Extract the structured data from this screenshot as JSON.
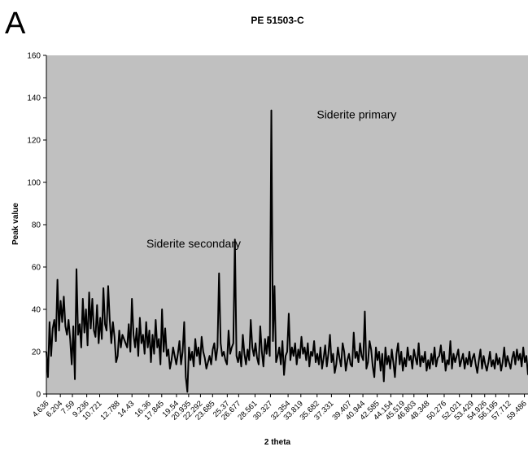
{
  "panel_label": "A",
  "chart_data": {
    "type": "line",
    "title": "PE 51503-C",
    "xlabel": "2 theta",
    "ylabel": "Peak value",
    "ylim": [
      0,
      160
    ],
    "yticks": [
      0,
      20,
      40,
      60,
      80,
      100,
      120,
      140,
      160
    ],
    "grid": false,
    "background": "#c0c0c0",
    "line_color": "#000000",
    "x_tick_labels": [
      "4.636",
      "6.204",
      "7.59",
      "9.236",
      "10.721",
      "12.788",
      "14.43",
      "16.36",
      "17.845",
      "19.54",
      "20.935",
      "22.292",
      "23.685",
      "25.37",
      "26.677",
      "28.561",
      "30.327",
      "32.354",
      "33.819",
      "35.682",
      "37.331",
      "39.407",
      "40.944",
      "42.585",
      "44.154",
      "45.519",
      "46.803",
      "48.348",
      "50.276",
      "52.021",
      "53.429",
      "54.926",
      "56.195",
      "57.712",
      "59.486"
    ],
    "series": [
      {
        "x_start": 4.6,
        "x_end": 59.9,
        "values": [
          20,
          8,
          34,
          18,
          31,
          35,
          25,
          54,
          30,
          44,
          34,
          46,
          32,
          28,
          35,
          26,
          14,
          32,
          7,
          59,
          28,
          33,
          22,
          45,
          29,
          40,
          23,
          48,
          31,
          45,
          30,
          27,
          42,
          24,
          36,
          26,
          50,
          33,
          30,
          51,
          35,
          24,
          34,
          27,
          15,
          18,
          30,
          22,
          28,
          26,
          24,
          22,
          33,
          20,
          45,
          28,
          22,
          31,
          18,
          36,
          24,
          28,
          19,
          34,
          22,
          30,
          15,
          28,
          19,
          35,
          22,
          26,
          14,
          40,
          20,
          31,
          18,
          21,
          12,
          16,
          22,
          18,
          14,
          19,
          25,
          14,
          20,
          34,
          8,
          1,
          22,
          16,
          20,
          13,
          26,
          18,
          22,
          14,
          27,
          20,
          17,
          12,
          15,
          18,
          14,
          21,
          24,
          16,
          22,
          57,
          24,
          18,
          20,
          16,
          14,
          30,
          19,
          22,
          24,
          73,
          18,
          15,
          20,
          13,
          28,
          19,
          14,
          21,
          16,
          35,
          22,
          18,
          24,
          17,
          14,
          32,
          20,
          13,
          26,
          19,
          27,
          18,
          134,
          25,
          51,
          15,
          18,
          22,
          14,
          25,
          9,
          18,
          20,
          38,
          16,
          22,
          18,
          24,
          14,
          21,
          17,
          27,
          19,
          22,
          16,
          24,
          13,
          20,
          18,
          25,
          15,
          19,
          14,
          22,
          12,
          17,
          23,
          13,
          19,
          28,
          15,
          19,
          10,
          14,
          22,
          17,
          13,
          24,
          20,
          11,
          16,
          19,
          14,
          13,
          29,
          17,
          20,
          15,
          24,
          18,
          16,
          39,
          12,
          15,
          25,
          21,
          13,
          8,
          22,
          16,
          20,
          11,
          19,
          6,
          22,
          14,
          18,
          12,
          21,
          15,
          8,
          19,
          24,
          14,
          20,
          11,
          17,
          13,
          22,
          16,
          18,
          12,
          21,
          17,
          14,
          24,
          13,
          18,
          15,
          20,
          11,
          16,
          12,
          19,
          14,
          22,
          13,
          17,
          18,
          23,
          15,
          20,
          11,
          16,
          14,
          25,
          12,
          19,
          15,
          18,
          21,
          13,
          16,
          19,
          12,
          17,
          14,
          20,
          13,
          17,
          19,
          14,
          10,
          16,
          21,
          12,
          18,
          14,
          11,
          15,
          20,
          13,
          16,
          12,
          19,
          14,
          17,
          11,
          15,
          22,
          13,
          18,
          15,
          12,
          17,
          20,
          14,
          21,
          16,
          19,
          13,
          22,
          15,
          18,
          9
        ]
      }
    ],
    "annotations": [
      {
        "text": "Siderite primary",
        "x_value": 34.9,
        "y_value": 134
      },
      {
        "text": "Siderite secondary",
        "x_value": 27.3,
        "y_value": 73
      }
    ]
  }
}
